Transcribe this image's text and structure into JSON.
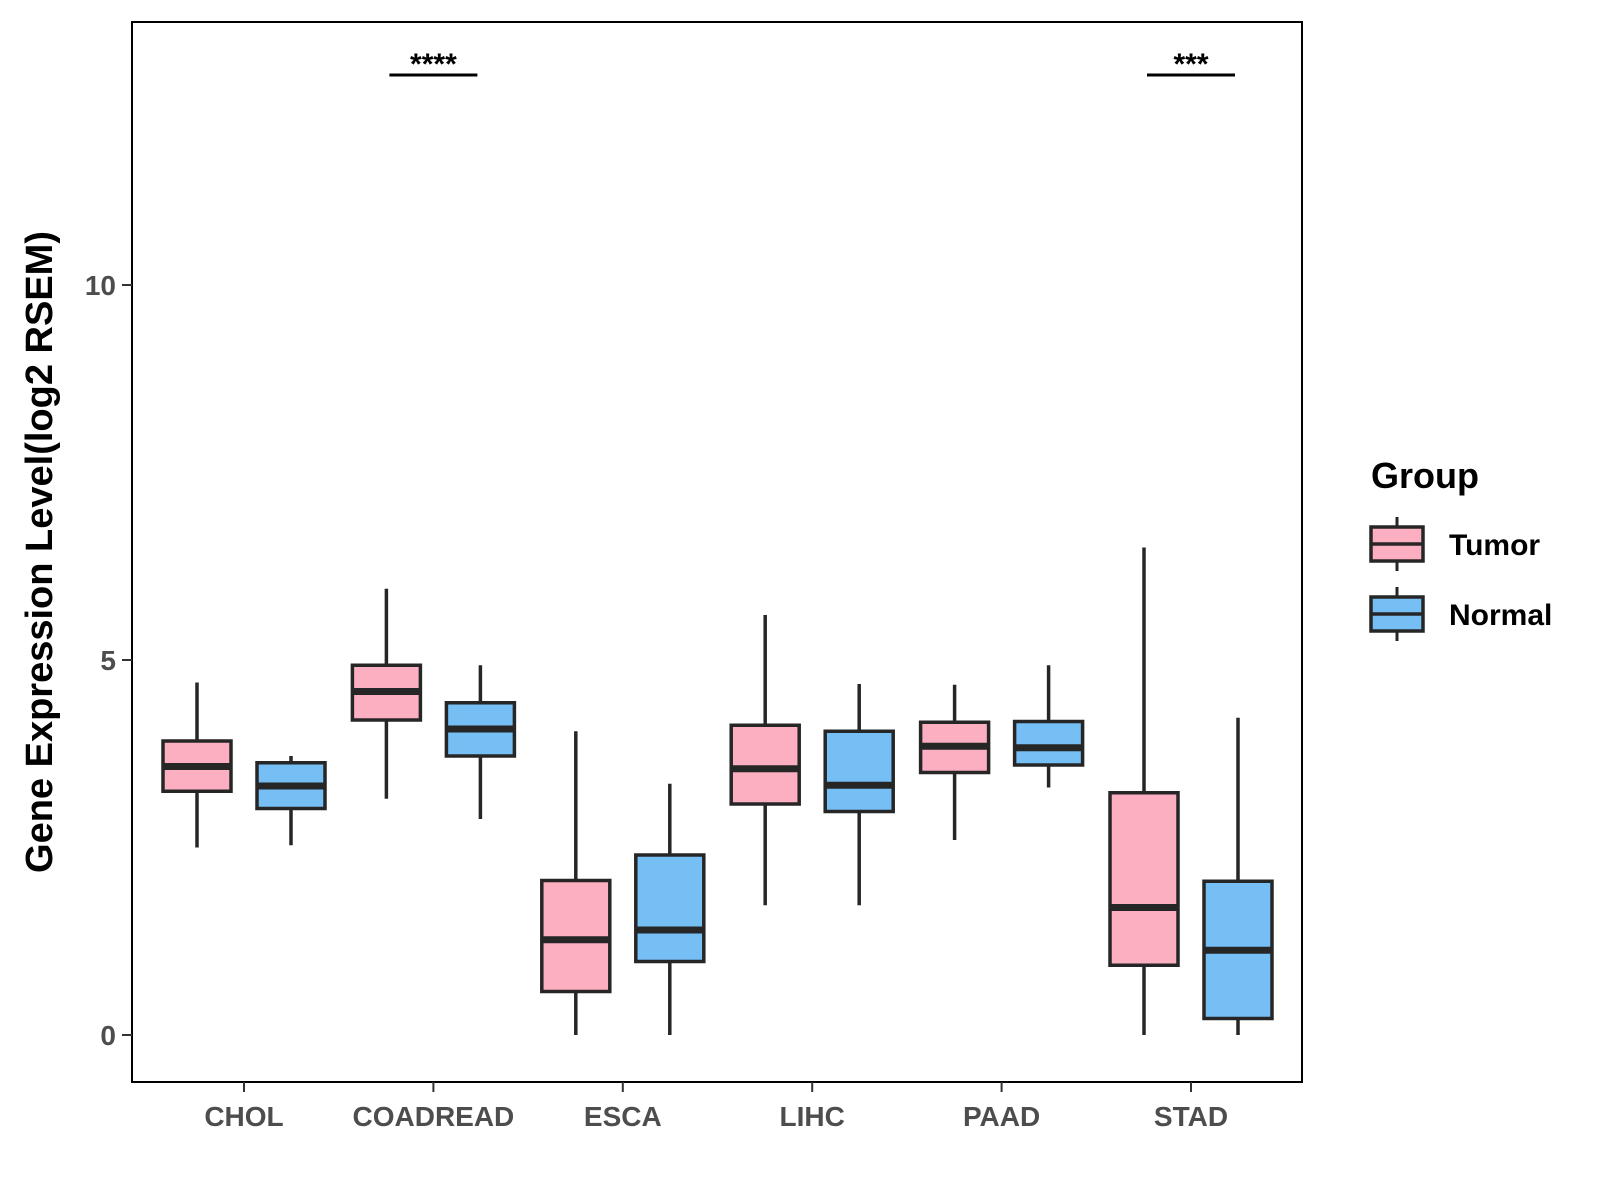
{
  "chart_data": {
    "type": "boxplot",
    "title": "",
    "xlabel": "",
    "ylabel": "Gene Expression Level(log2 RSEM)",
    "ylim": [
      -0.6,
      13.5
    ],
    "yticks": [
      0,
      5,
      10
    ],
    "grid": false,
    "legend": {
      "title": "Group",
      "position": "right"
    },
    "categories": [
      "CHOL",
      "COADREAD",
      "ESCA",
      "LIHC",
      "PAAD",
      "STAD"
    ],
    "series": [
      {
        "name": "Tumor",
        "color": "#FBAFC1",
        "boxes": [
          {
            "min": 2.5,
            "q1": 3.25,
            "median": 3.58,
            "q3": 3.92,
            "max": 4.7
          },
          {
            "min": 3.15,
            "q1": 4.2,
            "median": 4.58,
            "q3": 4.93,
            "max": 5.95
          },
          {
            "min": 0.0,
            "q1": 0.58,
            "median": 1.27,
            "q3": 2.06,
            "max": 4.05
          },
          {
            "min": 1.73,
            "q1": 3.08,
            "median": 3.55,
            "q3": 4.13,
            "max": 5.6
          },
          {
            "min": 2.6,
            "q1": 3.5,
            "median": 3.85,
            "q3": 4.17,
            "max": 4.67
          },
          {
            "min": 0.0,
            "q1": 0.93,
            "median": 1.7,
            "q3": 3.23,
            "max": 6.5
          }
        ]
      },
      {
        "name": "Normal",
        "color": "#75BFF5",
        "boxes": [
          {
            "min": 2.53,
            "q1": 3.02,
            "median": 3.32,
            "q3": 3.63,
            "max": 3.72
          },
          {
            "min": 2.88,
            "q1": 3.72,
            "median": 4.08,
            "q3": 4.43,
            "max": 4.93
          },
          {
            "min": 0.0,
            "q1": 0.98,
            "median": 1.4,
            "q3": 2.4,
            "max": 3.35
          },
          {
            "min": 1.73,
            "q1": 2.98,
            "median": 3.33,
            "q3": 4.05,
            "max": 4.68
          },
          {
            "min": 3.3,
            "q1": 3.6,
            "median": 3.83,
            "q3": 4.18,
            "max": 4.93
          },
          {
            "min": 0.0,
            "q1": 0.22,
            "median": 1.13,
            "q3": 2.05,
            "max": 4.23
          }
        ]
      }
    ],
    "annotations": [
      {
        "category": "COADREAD",
        "label": "****"
      },
      {
        "category": "STAD",
        "label": "***"
      }
    ]
  }
}
